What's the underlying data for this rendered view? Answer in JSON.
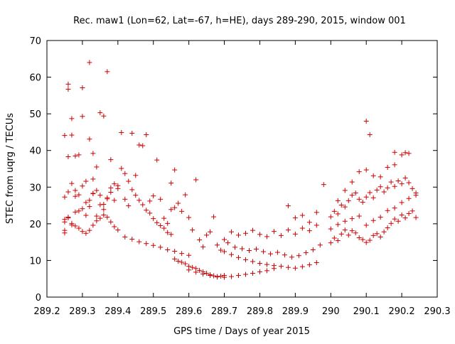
{
  "chart_data": {
    "type": "scatter",
    "title": "Rec. maw1 (Lon=62, Lat=-67, h=HE), days 289-290, 2015, window 001",
    "xlabel": "GPS time / Days of year 2015",
    "ylabel": "STEC from uqrg / TECUs",
    "xlim": [
      289.2,
      290.3
    ],
    "ylim": [
      0,
      70
    ],
    "x_ticks": [
      "289.2",
      "289.3",
      "289.4",
      "289.5",
      "289.6",
      "289.7",
      "289.8",
      "289.9",
      "290",
      "290.1",
      "290.2",
      "290.3"
    ],
    "x_tick_values": [
      289.2,
      289.3,
      289.4,
      289.5,
      289.6,
      289.7,
      289.8,
      289.9,
      290.0,
      290.1,
      290.2,
      290.3
    ],
    "y_ticks": [
      "0",
      "10",
      "20",
      "30",
      "40",
      "50",
      "60",
      "70"
    ],
    "y_tick_values": [
      0,
      10,
      20,
      30,
      40,
      50,
      60,
      70
    ],
    "grid": false,
    "marker": "plus",
    "color": "#cc0000",
    "series": [
      {
        "name": "",
        "x": [
          289.25,
          289.25,
          289.25,
          289.25,
          289.26,
          289.26,
          289.26,
          289.27,
          289.27,
          289.28,
          289.28,
          289.29,
          289.3,
          289.3,
          289.31,
          289.32,
          289.32,
          289.33,
          289.33,
          289.34,
          289.35,
          289.36,
          289.37,
          289.38,
          289.26,
          289.27,
          289.28,
          289.29,
          289.3,
          289.31,
          289.32,
          289.33,
          289.34,
          289.35,
          289.36,
          289.37,
          289.38,
          289.39,
          289.25,
          289.26,
          289.27,
          289.28,
          289.29,
          289.3,
          289.31,
          289.32,
          289.33,
          289.34,
          289.35,
          289.36,
          289.37,
          289.38,
          289.39,
          289.4,
          289.25,
          289.26,
          289.27,
          289.28,
          289.29,
          289.3,
          289.31,
          289.32,
          289.33,
          289.34,
          289.35,
          289.36,
          289.37,
          289.38,
          289.39,
          289.4,
          289.4,
          289.41,
          289.42,
          289.43,
          289.44,
          289.45,
          289.46,
          289.47,
          289.48,
          289.49,
          289.5,
          289.51,
          289.52,
          289.53,
          289.54,
          289.55,
          289.41,
          289.42,
          289.43,
          289.44,
          289.45,
          289.46,
          289.47,
          289.48,
          289.49,
          289.5,
          289.51,
          289.52,
          289.53,
          289.54,
          289.55,
          289.56,
          289.42,
          289.44,
          289.46,
          289.48,
          289.5,
          289.52,
          289.54,
          289.56,
          289.58,
          289.6,
          289.55,
          289.56,
          289.57,
          289.58,
          289.59,
          289.6,
          289.61,
          289.62,
          289.63,
          289.64,
          289.65,
          289.66,
          289.67,
          289.68,
          289.69,
          289.7,
          289.56,
          289.57,
          289.58,
          289.59,
          289.6,
          289.61,
          289.62,
          289.63,
          289.64,
          289.65,
          289.66,
          289.67,
          289.68,
          289.69,
          289.7,
          289.6,
          289.62,
          289.64,
          289.66,
          289.68,
          289.7,
          289.72,
          289.74,
          289.76,
          289.78,
          289.8,
          289.82,
          289.84,
          289.7,
          289.72,
          289.74,
          289.76,
          289.78,
          289.8,
          289.82,
          289.84,
          289.86,
          289.88,
          289.9,
          289.92,
          289.94,
          289.96,
          289.71,
          289.73,
          289.75,
          289.77,
          289.79,
          289.81,
          289.83,
          289.85,
          289.87,
          289.89,
          289.91,
          289.93,
          289.95,
          289.97,
          289.72,
          289.74,
          289.76,
          289.78,
          289.8,
          289.82,
          289.84,
          289.86,
          289.88,
          289.9,
          289.92,
          289.94,
          289.96,
          289.88,
          289.9,
          289.92,
          289.94,
          289.96,
          289.98,
          290.0,
          290.01,
          290.02,
          290.03,
          290.04,
          290.05,
          290.06,
          290.07,
          290.08,
          290.09,
          290.1,
          290.11,
          290.12,
          290.13,
          290.14,
          290.15,
          290.16,
          290.17,
          290.18,
          290.19,
          290.2,
          290.21,
          290.22,
          290.23,
          290.24,
          290.0,
          290.01,
          290.02,
          290.03,
          290.04,
          290.05,
          290.06,
          290.07,
          290.08,
          290.09,
          290.1,
          290.11,
          290.12,
          290.13,
          290.14,
          290.15,
          290.16,
          290.17,
          290.18,
          290.19,
          290.2,
          290.21,
          290.22,
          290.23,
          290.24,
          290.02,
          290.04,
          290.06,
          290.08,
          290.1,
          290.12,
          290.14,
          290.16,
          290.18,
          290.2,
          290.22,
          290.1,
          290.11,
          290.18,
          290.21,
          290.0,
          290.02,
          290.04,
          290.06,
          290.08,
          290.1,
          290.12,
          290.14,
          290.16,
          290.18,
          290.2,
          290.22,
          290.24
        ],
        "y": [
          44.1,
          18.2,
          17.5,
          27.3,
          58.1,
          56.7,
          38.3,
          48.7,
          44.2,
          38.5,
          29.1,
          38.8,
          49.3,
          57.1,
          31.6,
          64.0,
          43.1,
          39.2,
          32.2,
          35.5,
          50.3,
          49.4,
          61.5,
          37.5,
          28.7,
          31.0,
          27.5,
          23.5,
          24.1,
          22.3,
          26.4,
          28.2,
          29.1,
          27.8,
          25.3,
          26.8,
          28.6,
          30.9,
          21.2,
          21.6,
          20.1,
          19.4,
          18.8,
          17.9,
          17.4,
          18.2,
          19.6,
          20.8,
          21.5,
          22.4,
          21.8,
          20.5,
          19.2,
          18.3,
          20.5,
          21.8,
          19.7,
          23.2,
          27.9,
          30.3,
          25.8,
          24.7,
          28.3,
          22.1,
          25.2,
          23.9,
          27.1,
          29.8,
          26.4,
          30.4,
          29.6,
          35.1,
          33.7,
          31.6,
          29.3,
          27.8,
          26.4,
          25.2,
          23.7,
          22.9,
          21.4,
          20.3,
          19.5,
          18.8,
          17.6,
          17.1,
          44.9,
          26.7,
          24.9,
          44.7,
          33.2,
          41.5,
          41.3,
          44.3,
          26.2,
          27.6,
          37.4,
          26.7,
          21.5,
          20.1,
          23.9,
          24.4,
          16.4,
          15.8,
          15.1,
          14.6,
          14.1,
          13.6,
          12.9,
          12.5,
          11.9,
          11.4,
          31.1,
          34.7,
          25.6,
          23.4,
          27.9,
          21.7,
          18.3,
          32.0,
          15.6,
          13.7,
          16.9,
          17.8,
          21.9,
          14.2,
          12.8,
          15.7,
          10.4,
          9.8,
          9.5,
          9.1,
          8.4,
          8.1,
          7.8,
          7.3,
          6.9,
          6.5,
          6.1,
          5.8,
          5.5,
          5.7,
          5.9,
          7.4,
          6.8,
          6.3,
          5.9,
          5.6,
          5.4,
          5.6,
          5.9,
          6.2,
          6.5,
          6.9,
          7.2,
          7.8,
          12.4,
          11.6,
          10.8,
          10.2,
          9.7,
          9.2,
          8.9,
          8.6,
          8.4,
          8.1,
          7.9,
          8.3,
          8.8,
          9.4,
          14.8,
          13.6,
          13.2,
          12.7,
          13.1,
          12.4,
          11.8,
          12.2,
          11.5,
          10.9,
          11.3,
          12.1,
          12.9,
          14.2,
          17.8,
          16.9,
          17.4,
          18.2,
          17.1,
          16.5,
          17.9,
          16.8,
          18.3,
          17.2,
          18.8,
          18.1,
          19.6,
          24.9,
          21.6,
          22.3,
          20.4,
          23.1,
          30.7,
          14.8,
          16.1,
          15.4,
          17.2,
          18.3,
          16.9,
          18.1,
          17.5,
          16.2,
          15.7,
          14.9,
          15.5,
          16.8,
          17.3,
          16.4,
          17.8,
          18.9,
          20.1,
          21.3,
          20.7,
          22.4,
          21.6,
          22.8,
          23.5,
          21.7,
          21.9,
          23.4,
          22.7,
          25.1,
          24.6,
          26.3,
          27.8,
          28.4,
          26.7,
          25.9,
          27.3,
          28.5,
          27.1,
          29.2,
          30.1,
          28.7,
          29.8,
          31.4,
          30.2,
          31.7,
          30.9,
          32.5,
          31.2,
          29.6,
          28.4,
          26.3,
          29.1,
          31.4,
          34.2,
          34.7,
          33.1,
          32.8,
          35.4,
          39.5,
          38.8,
          39.2,
          48.0,
          44.3,
          36.1,
          39.4,
          18.6,
          19.8,
          20.7,
          21.4,
          22.1,
          19.6,
          20.9,
          21.8,
          23.6,
          24.3,
          25.8,
          26.9,
          27.8
        ]
      }
    ]
  }
}
